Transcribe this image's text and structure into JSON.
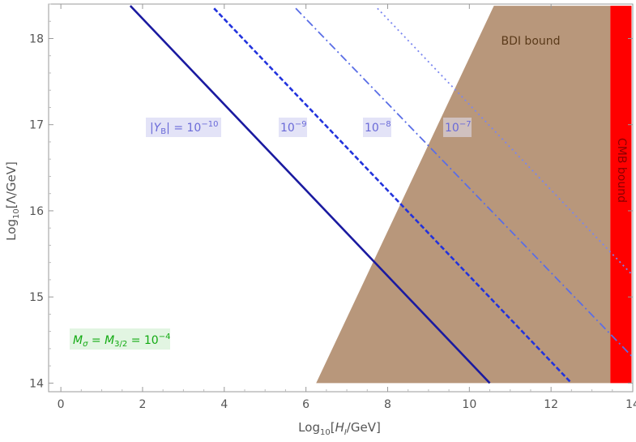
{
  "chart_data": {
    "type": "line",
    "xlabel": {
      "pre": "Log",
      "sub": "10",
      "mid": "[",
      "it": "H",
      "itsub": "I",
      "post": "/GeV]"
    },
    "ylabel": {
      "pre": "Log",
      "sub": "10",
      "post": "[Λ/GeV]"
    },
    "xlim": [
      -0.3,
      14.0
    ],
    "ylim": [
      13.9,
      18.4
    ],
    "xticks": [
      "0",
      "2",
      "4",
      "6",
      "8",
      "10",
      "12",
      "14"
    ],
    "yticks": [
      "14",
      "15",
      "16",
      "17",
      "18"
    ],
    "series": [
      {
        "x": [
          1.7,
          10.5
        ],
        "y": [
          18.38,
          14.0
        ],
        "color": "#1a1aa0",
        "dash": "solid"
      },
      {
        "x": [
          3.75,
          12.5
        ],
        "y": [
          18.35,
          14.0
        ],
        "color": "#2233dd",
        "dash": "dashed"
      },
      {
        "x": [
          5.75,
          14.0
        ],
        "y": [
          18.35,
          14.3
        ],
        "color": "#5a6ee6",
        "dash": "dashdot"
      },
      {
        "x": [
          7.75,
          14.0
        ],
        "y": [
          18.35,
          15.25
        ],
        "color": "#7a86f0",
        "dash": "dotted"
      }
    ],
    "regions": [
      {
        "label": "BDI bound",
        "color": "#b8977b",
        "polygon": [
          [
            6.25,
            14.0
          ],
          [
            10.6,
            18.38
          ],
          [
            13.45,
            18.38
          ],
          [
            13.45,
            14.0
          ]
        ]
      },
      {
        "label": "CMB bound",
        "color": "#ff0000",
        "polygon": [
          [
            13.45,
            14.0
          ],
          [
            13.45,
            18.38
          ],
          [
            13.97,
            18.38
          ],
          [
            13.97,
            14.0
          ]
        ]
      }
    ],
    "annotations": {
      "yb_main": {
        "pre": "|",
        "it": "Y",
        "itsub": "B",
        "mid": "| = 10",
        "sup": "−10"
      },
      "yb_9": {
        "base": "10",
        "sup": "−9"
      },
      "yb_8": {
        "base": "10",
        "sup": "−8"
      },
      "yb_7": {
        "base": "10",
        "sup": "−7"
      },
      "mass": {
        "a": "M",
        "asub": "σ",
        "b": " = ",
        "c": "M",
        "csub": "3/2",
        "d": " = 10",
        "sup": "−4"
      },
      "bdi": "BDI bound",
      "cmb": "CMB bound"
    },
    "colors": {
      "annotation_text": "#6a6ad8",
      "annotation_bg": "#e3e3f7",
      "mass_text": "#11aa11",
      "mass_bg": "#e2f5e2",
      "bdi_text": "#5a3a1a",
      "cmb_text": "#8b0000"
    }
  }
}
